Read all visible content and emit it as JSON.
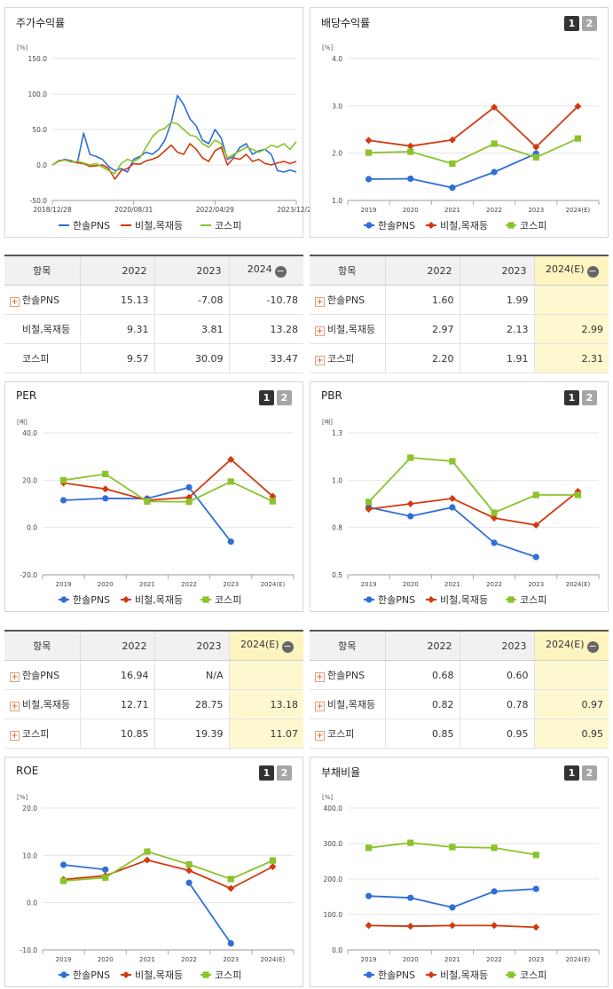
{
  "colors": {
    "hansol": "#2f6fd6",
    "steel": "#d23a10",
    "kospi": "#8bc32a",
    "highlight": "#fdf8cf"
  },
  "panels": {
    "stock": {
      "title": "주가수익률",
      "unit": "[%]"
    },
    "div": {
      "title": "배당수익률",
      "unit": "[%]",
      "btn1": "1",
      "btn2": "2"
    },
    "per": {
      "title": "PER",
      "unit": "[배]",
      "btn1": "1",
      "btn2": "2"
    },
    "pbr": {
      "title": "PBR",
      "unit": "[배]",
      "btn1": "1",
      "btn2": "2"
    },
    "roe": {
      "title": "ROE",
      "unit": "[%]",
      "btn1": "1",
      "btn2": "2"
    },
    "debt": {
      "title": "부채비율",
      "unit": "[%]",
      "btn1": "1",
      "btn2": "2"
    }
  },
  "legend": [
    "한솔PNS",
    "비철,목재등",
    "코스피"
  ],
  "chart_data": [
    {
      "id": "stock",
      "type": "line",
      "title": "주가수익률",
      "ylabel": "[%]",
      "ylim": [
        -50,
        150
      ],
      "yticks": [
        "150.0",
        "100.0",
        "50.0",
        "0.0",
        "-50.0"
      ],
      "xticks": [
        "2018/12/28",
        "2020/08/31",
        "2022/04/29",
        "2023/12/28"
      ],
      "series": [
        {
          "name": "한솔PNS",
          "values": [
            0,
            5,
            8,
            6,
            3,
            45,
            15,
            12,
            8,
            -2,
            -8,
            -5,
            -10,
            8,
            12,
            18,
            15,
            22,
            35,
            60,
            98,
            85,
            65,
            55,
            35,
            30,
            50,
            38,
            8,
            12,
            25,
            30,
            15,
            20,
            22,
            15,
            -8,
            -10,
            -7,
            -10
          ]
        },
        {
          "name": "비철,목재등",
          "values": [
            0,
            6,
            7,
            5,
            3,
            2,
            -2,
            -1,
            0,
            -5,
            -20,
            -8,
            -5,
            2,
            1,
            6,
            8,
            12,
            20,
            28,
            18,
            15,
            30,
            22,
            10,
            5,
            20,
            25,
            0,
            10,
            8,
            15,
            5,
            8,
            2,
            0,
            3,
            5,
            2,
            5
          ]
        },
        {
          "name": "코스피",
          "values": [
            0,
            5,
            7,
            4,
            5,
            3,
            0,
            2,
            -3,
            -8,
            -12,
            2,
            8,
            5,
            10,
            25,
            40,
            48,
            52,
            60,
            58,
            50,
            42,
            40,
            30,
            25,
            35,
            30,
            10,
            15,
            20,
            25,
            22,
            18,
            22,
            28,
            25,
            30,
            22,
            33
          ]
        }
      ]
    },
    {
      "id": "div",
      "type": "line",
      "title": "배당수익률",
      "ylabel": "[%]",
      "ylim": [
        1,
        4
      ],
      "yticks": [
        "4.0",
        "3.0",
        "2.0",
        "1.0"
      ],
      "categories": [
        "2019",
        "2020",
        "2021",
        "2022",
        "2023",
        "2024(E)"
      ],
      "series": [
        {
          "name": "한솔PNS",
          "values": [
            1.45,
            1.46,
            1.27,
            1.6,
            1.99,
            null
          ]
        },
        {
          "name": "비철,목재등",
          "values": [
            2.27,
            2.15,
            2.28,
            2.97,
            2.13,
            2.99
          ]
        },
        {
          "name": "코스피",
          "values": [
            2.01,
            2.03,
            1.78,
            2.2,
            1.91,
            2.31
          ]
        }
      ]
    },
    {
      "id": "per",
      "type": "line",
      "title": "PER",
      "ylabel": "[배]",
      "ylim": [
        -20,
        40
      ],
      "yticks": [
        "40.0",
        "20.0",
        "0.0",
        "-20.0"
      ],
      "categories": [
        "2019",
        "2020",
        "2021",
        "2022",
        "2023",
        "2024(E)"
      ],
      "series": [
        {
          "name": "한솔PNS",
          "values": [
            11.5,
            12.3,
            12.2,
            16.94,
            -6,
            null
          ]
        },
        {
          "name": "비철,목재등",
          "values": [
            18.8,
            16.3,
            11.5,
            12.71,
            28.75,
            13.18
          ]
        },
        {
          "name": "코스피",
          "values": [
            20,
            22.6,
            11.0,
            10.85,
            19.39,
            11.07
          ]
        }
      ]
    },
    {
      "id": "pbr",
      "type": "line",
      "title": "PBR",
      "ylabel": "[배]",
      "ylim": [
        0.5,
        1.3
      ],
      "yticks": [
        "1.3",
        "1.0",
        "0.8",
        "0.5"
      ],
      "categories": [
        "2019",
        "2020",
        "2021",
        "2022",
        "2023",
        "2024(E)"
      ],
      "series": [
        {
          "name": "한솔PNS",
          "values": [
            0.88,
            0.83,
            0.88,
            0.68,
            0.6,
            null
          ]
        },
        {
          "name": "비철,목재등",
          "values": [
            0.87,
            0.9,
            0.93,
            0.82,
            0.78,
            0.97
          ]
        },
        {
          "name": "코스피",
          "values": [
            0.91,
            1.16,
            1.14,
            0.85,
            0.95,
            0.95
          ]
        }
      ]
    },
    {
      "id": "roe",
      "type": "line",
      "title": "ROE",
      "ylabel": "[%]",
      "ylim": [
        -10,
        20
      ],
      "yticks": [
        "20.0",
        "10.0",
        "0.0",
        "-10.0"
      ],
      "categories": [
        "2019",
        "2020",
        "2021",
        "2022",
        "2023",
        "2024(E)"
      ],
      "series": [
        {
          "name": "한솔PNS",
          "values": [
            8.0,
            7.0,
            null,
            4.2,
            -8.6,
            null
          ]
        },
        {
          "name": "비철,목재등",
          "values": [
            4.9,
            5.7,
            9.0,
            6.8,
            3.0,
            7.6
          ]
        },
        {
          "name": "코스피",
          "values": [
            4.6,
            5.3,
            10.8,
            8.1,
            5.0,
            8.9
          ]
        }
      ]
    },
    {
      "id": "debt",
      "type": "line",
      "title": "부채비율",
      "ylabel": "[%]",
      "ylim": [
        0,
        400
      ],
      "yticks": [
        "400.0",
        "300.0",
        "200.0",
        "100.0",
        "0.0"
      ],
      "categories": [
        "2019",
        "2020",
        "2021",
        "2022",
        "2023",
        "2024(E)"
      ],
      "series": [
        {
          "name": "한솔PNS",
          "values": [
            152,
            147,
            120,
            165,
            172,
            null
          ]
        },
        {
          "name": "비철,목재등",
          "values": [
            69,
            67,
            69,
            69,
            64,
            null
          ]
        },
        {
          "name": "코스피",
          "values": [
            288,
            302,
            290,
            288,
            268,
            null
          ]
        }
      ]
    }
  ],
  "tables": {
    "stock": {
      "header": "항목",
      "cols": [
        "2022",
        "2023",
        "2024"
      ],
      "rows": [
        {
          "name": "한솔PNS",
          "plus": true,
          "vals": [
            "15.13",
            "-7.08",
            "-10.78"
          ]
        },
        {
          "name": "비철,목재등",
          "plus": false,
          "vals": [
            "9.31",
            "3.81",
            "13.28"
          ]
        },
        {
          "name": "코스피",
          "plus": false,
          "vals": [
            "9.57",
            "30.09",
            "33.47"
          ]
        }
      ]
    },
    "div": {
      "header": "항목",
      "cols": [
        "2022",
        "2023",
        "2024(E)"
      ],
      "rows": [
        {
          "name": "한솔PNS",
          "plus": true,
          "vals": [
            "1.60",
            "1.99",
            ""
          ]
        },
        {
          "name": "비철,목재등",
          "plus": true,
          "vals": [
            "2.97",
            "2.13",
            "2.99"
          ]
        },
        {
          "name": "코스피",
          "plus": true,
          "vals": [
            "2.20",
            "1.91",
            "2.31"
          ]
        }
      ]
    },
    "per": {
      "header": "항목",
      "cols": [
        "2022",
        "2023",
        "2024(E)"
      ],
      "rows": [
        {
          "name": "한솔PNS",
          "plus": true,
          "vals": [
            "16.94",
            "N/A",
            ""
          ]
        },
        {
          "name": "비철,목재등",
          "plus": true,
          "vals": [
            "12.71",
            "28.75",
            "13.18"
          ]
        },
        {
          "name": "코스피",
          "plus": true,
          "vals": [
            "10.85",
            "19.39",
            "11.07"
          ]
        }
      ]
    },
    "pbr": {
      "header": "항목",
      "cols": [
        "2022",
        "2023",
        "2024(E)"
      ],
      "rows": [
        {
          "name": "한솔PNS",
          "plus": true,
          "vals": [
            "0.68",
            "0.60",
            ""
          ]
        },
        {
          "name": "비철,목재등",
          "plus": true,
          "vals": [
            "0.82",
            "0.78",
            "0.97"
          ]
        },
        {
          "name": "코스피",
          "plus": true,
          "vals": [
            "0.85",
            "0.95",
            "0.95"
          ]
        }
      ]
    }
  }
}
